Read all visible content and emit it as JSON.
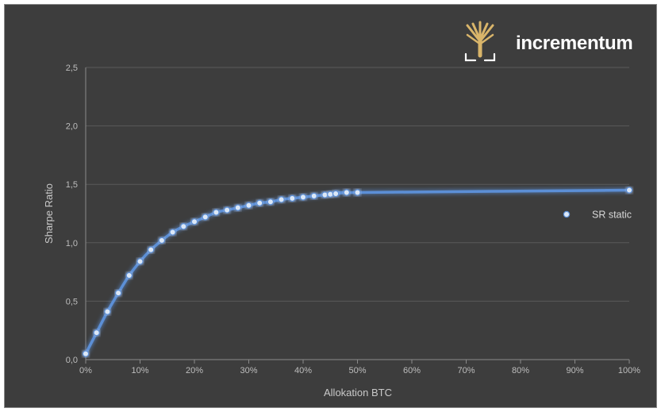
{
  "brand": {
    "name": "incrementum",
    "logo_color": "#d9b56a"
  },
  "chart_data": {
    "type": "line",
    "title": "",
    "xlabel": "Allokation BTC",
    "ylabel": "Sharpe Ratio",
    "xlim": [
      0,
      100
    ],
    "ylim": [
      0,
      2.5
    ],
    "x_ticks": [
      "0%",
      "10%",
      "20%",
      "30%",
      "40%",
      "50%",
      "60%",
      "70%",
      "80%",
      "90%",
      "100%"
    ],
    "x_tick_values": [
      0,
      10,
      20,
      30,
      40,
      50,
      60,
      70,
      80,
      90,
      100
    ],
    "y_ticks": [
      "0,0",
      "0,5",
      "1,0",
      "1,5",
      "2,0",
      "2,5"
    ],
    "y_tick_values": [
      0,
      0.5,
      1.0,
      1.5,
      2.0,
      2.5
    ],
    "grid": "horizontal",
    "legend_position": "right",
    "colors": {
      "background": "#3d3d3d",
      "line": "#5b8fd6",
      "marker": "#dce8f7",
      "grid": "#5a5a5a"
    },
    "series": [
      {
        "name": "SR static",
        "x": [
          0,
          2,
          4,
          6,
          8,
          10,
          12,
          14,
          16,
          18,
          20,
          22,
          24,
          26,
          28,
          30,
          32,
          34,
          36,
          38,
          40,
          42,
          44,
          45,
          46,
          48,
          50,
          100
        ],
        "y": [
          0.05,
          0.23,
          0.41,
          0.57,
          0.72,
          0.84,
          0.94,
          1.02,
          1.09,
          1.14,
          1.18,
          1.22,
          1.26,
          1.28,
          1.3,
          1.32,
          1.34,
          1.35,
          1.37,
          1.38,
          1.39,
          1.4,
          1.41,
          1.415,
          1.42,
          1.43,
          1.43,
          1.45
        ]
      }
    ]
  }
}
